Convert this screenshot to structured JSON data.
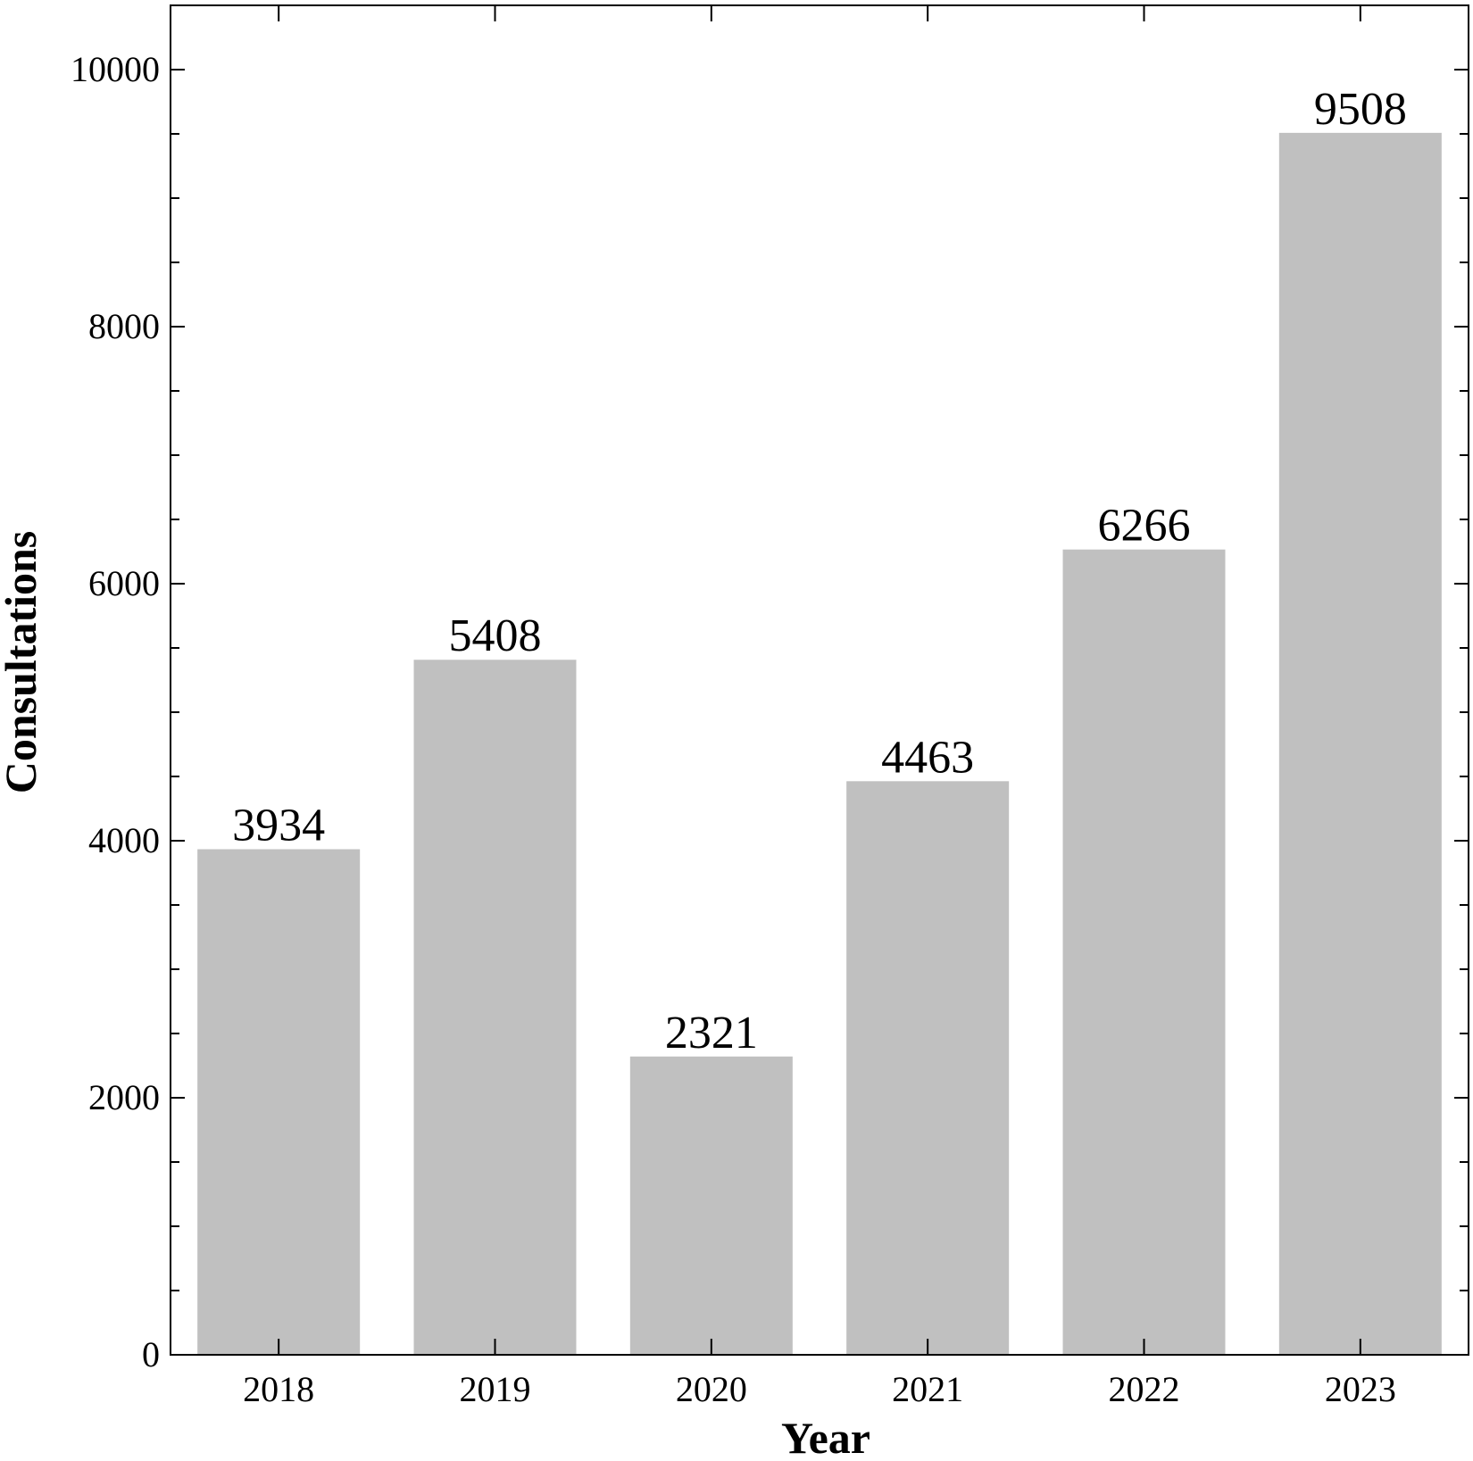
{
  "chart_data": {
    "type": "bar",
    "categories": [
      "2018",
      "2019",
      "2020",
      "2021",
      "2022",
      "2023"
    ],
    "values": [
      3934,
      5408,
      2321,
      4463,
      6266,
      9508
    ],
    "data_labels": [
      "3934",
      "5408",
      "2321",
      "4463",
      "6266",
      "9508"
    ],
    "title": "",
    "xlabel": "Year",
    "ylabel": "Consultations",
    "ylim": [
      0,
      10500
    ],
    "yticks": [
      0,
      2000,
      4000,
      6000,
      8000,
      10000
    ],
    "ytick_labels": [
      "0",
      "2000",
      "4000",
      "6000",
      "8000",
      "10000"
    ],
    "yminor_step": 500,
    "grid": false,
    "legend": "none",
    "bar_color": "#c0c0c0",
    "axis_color": "#000000"
  }
}
